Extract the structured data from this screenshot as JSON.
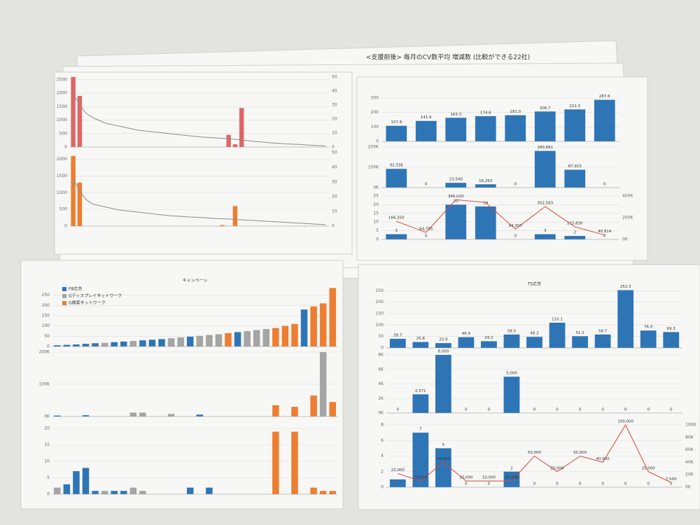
{
  "header": "<支援前後> 毎月のCV数平均 増減数 (比較ができる22社)",
  "chart_data": [
    {
      "type": "bar",
      "ylim": [
        0,
        2600
      ],
      "yticks": [
        0,
        500,
        1000,
        1500,
        2000,
        2500
      ],
      "y2lim": [
        0,
        50
      ],
      "y2ticks": [
        0,
        10,
        20,
        30,
        40,
        50
      ],
      "grid": true,
      "series": [
        {
          "color": "#e06666",
          "values": [
            2600,
            1900,
            0,
            0,
            0,
            0,
            0,
            0,
            0,
            0,
            0,
            0,
            0,
            0,
            0,
            0,
            0,
            0,
            0,
            0,
            0,
            0,
            0,
            0,
            450,
            100,
            1450,
            0,
            0,
            0,
            0,
            0,
            0,
            0,
            0,
            0,
            0,
            0,
            0,
            0
          ]
        },
        {
          "color": "#8c8c8c",
          "axis": "y2",
          "values": [
            38,
            30,
            24,
            21,
            19,
            17,
            16,
            15,
            14,
            13,
            12,
            11.5,
            11,
            10.5,
            10,
            9.5,
            9,
            8.5,
            8,
            7.5,
            7,
            6.8,
            6.5,
            6.2,
            6,
            5.5,
            5,
            4.5,
            4,
            3.6,
            3.2,
            2.8,
            2.5,
            2.2,
            2,
            1.8,
            1.5,
            1.2,
            1,
            0.8
          ]
        }
      ]
    },
    {
      "type": "bar",
      "ylim": [
        0,
        2200
      ],
      "yticks": [
        0,
        500,
        1000,
        1500,
        2000
      ],
      "y2lim": [
        0,
        50
      ],
      "y2ticks": [
        0,
        10,
        20,
        30,
        40,
        50
      ],
      "grid": true,
      "series": [
        {
          "color": "#ed7d31",
          "values": [
            2100,
            1300,
            0,
            0,
            0,
            0,
            0,
            0,
            0,
            0,
            0,
            0,
            0,
            0,
            0,
            0,
            0,
            0,
            0,
            0,
            0,
            0,
            0,
            30,
            0,
            600,
            0,
            0,
            0,
            0,
            0,
            0,
            0,
            0,
            0,
            0,
            0,
            0,
            0,
            0
          ]
        },
        {
          "color": "#8c8c8c",
          "axis": "y2",
          "values": [
            32,
            24,
            18,
            15,
            14,
            13,
            12,
            11,
            10.5,
            10,
            9.5,
            9,
            8.5,
            8,
            7.5,
            7,
            6.8,
            6.5,
            6.2,
            6,
            5.8,
            5.5,
            5.2,
            5,
            4.8,
            4.5,
            4.2,
            4,
            3.8,
            3.5,
            3.2,
            3,
            2.8,
            2.5,
            2.2,
            2,
            1.8,
            1.5,
            1.2,
            1
          ]
        }
      ]
    },
    {
      "type": "bar",
      "ylim": [
        0,
        300
      ],
      "yticks": [
        0,
        100,
        200,
        300
      ],
      "grid": true,
      "series": [
        {
          "color": "#2e75b6",
          "values": [
            107.8,
            141.6,
            163.3,
            174.6,
            181.0,
            206.7,
            221.0,
            287.6
          ],
          "value_labels": [
            "107.8",
            "141.6",
            "163.3",
            "174.6",
            "181.0",
            "206.7",
            "221.0",
            "287.6"
          ]
        }
      ]
    },
    {
      "type": "bar",
      "ylim": [
        0,
        200000
      ],
      "yticks": [
        {
          "value": 0,
          "label": "0K"
        },
        {
          "value": 100000,
          "label": "100K"
        },
        {
          "value": 200000,
          "label": "200K"
        }
      ],
      "grid": true,
      "series": [
        {
          "color": "#2e75b6",
          "values": [
            92336,
            0,
            23540,
            16263,
            0,
            180661,
            87915,
            0
          ],
          "value_labels": [
            "92,336",
            "0",
            "23,540",
            "16,263",
            "0",
            "180,661",
            "87,915",
            "0"
          ]
        }
      ]
    },
    {
      "type": "bar",
      "ylim": [
        0,
        25
      ],
      "yticks": [
        0,
        5,
        10,
        15,
        20,
        25
      ],
      "y2lim": [
        0,
        400000
      ],
      "y2ticks": [
        {
          "value": 0,
          "label": "0K"
        },
        {
          "value": 200000,
          "label": "200K"
        },
        {
          "value": 400000,
          "label": "400K"
        }
      ],
      "grid": true,
      "data_labels": true,
      "series": [
        {
          "color": "#2e75b6",
          "values": [
            3,
            0,
            20,
            19,
            0,
            3,
            2,
            0
          ]
        },
        {
          "color": "#d9453a",
          "axis": "y2",
          "values": [
            166350,
            64795,
            366020,
            340000,
            94307,
            302583,
            115830,
            40814
          ],
          "value_labels": [
            "166,350",
            "64,795",
            "366,020",
            null,
            "94,307",
            "302,583",
            "115,830",
            "40,814"
          ]
        }
      ]
    },
    {
      "type": "bar",
      "title": "キャンペーン",
      "ylim": [
        0,
        300
      ],
      "yticks": [
        0,
        50,
        100,
        150,
        200,
        250
      ],
      "grid": true,
      "legend": [
        {
          "name": "FB広告",
          "color": "#2e75b6"
        },
        {
          "name": "Gディスプレイネットワーク",
          "color": "#a5a5a5"
        },
        {
          "name": "G検索ネットワーク",
          "color": "#ed7d31"
        }
      ],
      "series": [
        {
          "color": "#2e75b6",
          "values": [
            6,
            8,
            10,
            13,
            16,
            18,
            21,
            24,
            27,
            30,
            33,
            36,
            40,
            44,
            48,
            52,
            56,
            60,
            65,
            70,
            75,
            80,
            85,
            90,
            100,
            110,
            180,
            195,
            210,
            285
          ],
          "bar_colors": [
            "#2e75b6",
            "#2e75b6",
            "#2e75b6",
            "#2e75b6",
            "#2e75b6",
            "#a5a5a5",
            "#2e75b6",
            "#2e75b6",
            "#a5a5a5",
            "#2e75b6",
            "#2e75b6",
            "#2e75b6",
            "#a5a5a5",
            "#a5a5a5",
            "#2e75b6",
            "#a5a5a5",
            "#a5a5a5",
            "#a5a5a5",
            "#ed7d31",
            "#2e75b6",
            "#a5a5a5",
            "#a5a5a5",
            "#a5a5a5",
            "#ed7d31",
            "#ed7d31",
            "#ed7d31",
            "#2e75b6",
            "#ed7d31",
            "#ed7d31",
            "#ed7d31"
          ]
        }
      ]
    },
    {
      "type": "bar",
      "ylim": [
        0,
        200000
      ],
      "yticks": [
        {
          "value": 0,
          "label": "0K"
        },
        {
          "value": 100000,
          "label": "100K"
        },
        {
          "value": 200000,
          "label": "200K"
        }
      ],
      "grid": true,
      "series": [
        {
          "color": "#2e75b6",
          "values": [
            3000,
            0,
            0,
            4000,
            0,
            0,
            0,
            0,
            12000,
            12000,
            0,
            0,
            8000,
            0,
            0,
            6000,
            0,
            0,
            0,
            0,
            0,
            0,
            0,
            35000,
            0,
            30000,
            0,
            65000,
            200000,
            45000
          ],
          "bar_colors": [
            "#2e75b6",
            "#2e75b6",
            "#2e75b6",
            "#2e75b6",
            "#2e75b6",
            "#a5a5a5",
            "#2e75b6",
            "#2e75b6",
            "#a5a5a5",
            "#a5a5a5",
            "#2e75b6",
            "#2e75b6",
            "#a5a5a5",
            "#a5a5a5",
            "#2e75b6",
            "#2e75b6",
            "#a5a5a5",
            "#a5a5a5",
            "#ed7d31",
            "#2e75b6",
            "#a5a5a5",
            "#a5a5a5",
            "#a5a5a5",
            "#ed7d31",
            "#ed7d31",
            "#ed7d31",
            "#2e75b6",
            "#ed7d31",
            "#a5a5a5",
            "#ed7d31"
          ]
        }
      ]
    },
    {
      "type": "bar",
      "ylim": [
        0,
        20
      ],
      "yticks": [
        0,
        5,
        10,
        15,
        20
      ],
      "grid": true,
      "series": [
        {
          "color": "#2e75b6",
          "values": [
            2,
            3,
            7,
            8,
            1,
            1,
            1,
            1,
            2,
            1,
            0,
            0,
            0,
            0,
            2,
            0,
            2,
            0,
            0,
            0,
            0,
            0,
            0,
            19,
            0,
            19,
            0,
            2,
            1,
            1
          ],
          "bar_colors": [
            "#a5a5a5",
            "#2e75b6",
            "#2e75b6",
            "#2e75b6",
            "#2e75b6",
            "#a5a5a5",
            "#2e75b6",
            "#2e75b6",
            "#a5a5a5",
            "#a5a5a5",
            "#2e75b6",
            "#2e75b6",
            "#a5a5a5",
            "#a5a5a5",
            "#2e75b6",
            "#2e75b6",
            "#2e75b6",
            "#a5a5a5",
            "#ed7d31",
            "#2e75b6",
            "#a5a5a5",
            "#a5a5a5",
            "#a5a5a5",
            "#ed7d31",
            "#ed7d31",
            "#ed7d31",
            "#2e75b6",
            "#ed7d31",
            "#ed7d31",
            "#ed7d31"
          ]
        }
      ]
    },
    {
      "type": "bar",
      "title": "TS広告",
      "ylim": [
        0,
        260
      ],
      "yticks": [
        0,
        50,
        100,
        150,
        200,
        250
      ],
      "grid": true,
      "series": [
        {
          "color": "#2e75b6",
          "values": [
            39.7,
            25.8,
            20.9,
            46.9,
            29.2,
            58.5,
            48.2,
            110.1,
            51.2,
            58.7,
            252.3,
            76.0,
            69.3
          ],
          "value_labels": [
            "39.7",
            "25.8",
            "20.9",
            "46.9",
            "29.2",
            "58.5",
            "48.2",
            "110.1",
            "51.2",
            "58.7",
            "252.3",
            "76.0",
            "69.3"
          ]
        }
      ]
    },
    {
      "type": "bar",
      "ylim": [
        0,
        8000
      ],
      "yticks": [
        {
          "value": 0,
          "label": "0K"
        },
        {
          "value": 2000,
          "label": "2K"
        },
        {
          "value": 4000,
          "label": "4K"
        },
        {
          "value": 6000,
          "label": "6K"
        },
        {
          "value": 8000,
          "label": "8K"
        }
      ],
      "grid": true,
      "series": [
        {
          "color": "#2e75b6",
          "values": [
            0,
            2571,
            8000,
            0,
            0,
            5000,
            0,
            0,
            0,
            0,
            0,
            0,
            0
          ],
          "value_labels": [
            "0",
            "2,571",
            "8,000",
            "0",
            "0",
            "5,000",
            "0",
            "0",
            "0",
            "0",
            "0",
            "0",
            "0"
          ]
        }
      ]
    },
    {
      "type": "bar",
      "ylim": [
        0,
        8
      ],
      "yticks": [
        0,
        2,
        4,
        6,
        8
      ],
      "y2lim": [
        0,
        100000
      ],
      "y2ticks": [
        {
          "value": 0,
          "label": "0K"
        },
        {
          "value": 20000,
          "label": "20K"
        },
        {
          "value": 40000,
          "label": "40K"
        },
        {
          "value": 60000,
          "label": "60K"
        },
        {
          "value": 80000,
          "label": "80K"
        },
        {
          "value": 100000,
          "label": "100K"
        }
      ],
      "grid": true,
      "series": [
        {
          "color": "#2e75b6",
          "values": [
            1,
            7,
            5,
            0,
            0,
            2,
            0,
            0,
            0,
            0,
            0,
            0,
            0
          ],
          "value_labels": [
            null,
            "7",
            "5",
            "0",
            "0",
            "2",
            "0",
            "0",
            "0",
            "0",
            "0",
            "0",
            "0"
          ]
        },
        {
          "color": "#d9453a",
          "axis": "y2",
          "values": [
            22000,
            10000,
            40000,
            10000,
            10000,
            10000,
            50000,
            25000,
            50000,
            40000,
            100000,
            25000,
            7500
          ],
          "value_labels": [
            "22,000",
            "10,000",
            "40,000",
            "10,000",
            "10,000",
            "10,000",
            "50,000",
            "25,000",
            "50,000",
            "40,000",
            "100,000",
            "25,000",
            "7,500"
          ]
        }
      ]
    }
  ]
}
